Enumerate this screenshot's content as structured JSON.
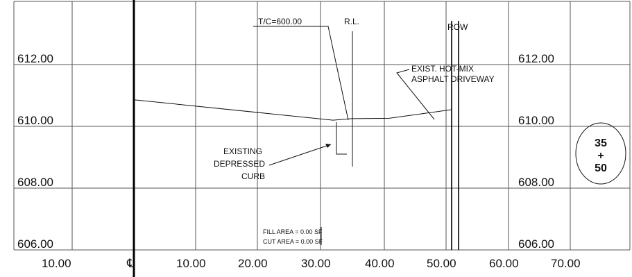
{
  "elevation_labels_left": [
    "612.00",
    "610.00",
    "608.00",
    "606.00"
  ],
  "elevation_labels_right": [
    "612.00",
    "610.00",
    "608.00",
    "606.00"
  ],
  "offset_labels": [
    "10.00",
    "℄",
    "10.00",
    "20.00",
    "30.00",
    "40.00",
    "50.00",
    "60.00",
    "70.00"
  ],
  "annotations": {
    "tc": "T/C=600.00",
    "rl": "R.L.",
    "row": "ROW",
    "driveway_line1": "EXIST. HOT-MIX",
    "driveway_line2": "ASPHALT DRIVEWAY",
    "curb_line1": "EXISTING",
    "curb_line2": "DEPRESSED",
    "curb_line3": "CURB",
    "fill_area": "FILL AREA = 0.00 SF",
    "cut_area": "CUT AREA = 0.00 SF"
  },
  "station": {
    "top": "35",
    "mid": "+",
    "bottom": "50"
  },
  "ground_profile": {
    "offsets": [
      0,
      32,
      35,
      41,
      51
    ],
    "elevations": [
      610.86,
      610.2,
      610.25,
      610.26,
      610.54
    ]
  },
  "colors": {
    "lines": "#111111",
    "grid": "#555555",
    "background": "#ffffff"
  }
}
